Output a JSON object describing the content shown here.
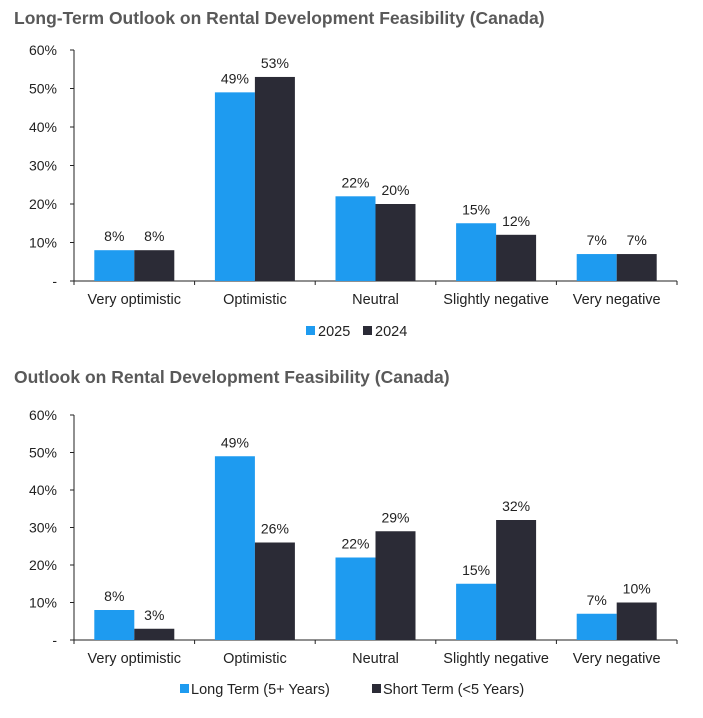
{
  "colors": {
    "primary": "#1e9bf0",
    "secondary": "#2b2b36",
    "axis": "#222222"
  },
  "chart_data": [
    {
      "type": "bar",
      "title": "Long-Term Outlook on Rental Development Feasibility (Canada)",
      "categories": [
        "Very optimistic",
        "Optimistic",
        "Neutral",
        "Slightly negative",
        "Very negative"
      ],
      "series": [
        {
          "name": "2025",
          "values": [
            8,
            49,
            22,
            15,
            7
          ],
          "labels": [
            "8%",
            "49%",
            "22%",
            "15%",
            "7%"
          ]
        },
        {
          "name": "2024",
          "values": [
            8,
            53,
            20,
            12,
            7
          ],
          "labels": [
            "8%",
            "53%",
            "20%",
            "12%",
            "7%"
          ]
        }
      ],
      "ylim": [
        0,
        60
      ],
      "yticks": [
        "-",
        "10%",
        "20%",
        "30%",
        "40%",
        "50%",
        "60%"
      ],
      "grid": false,
      "legend": "bottom-center"
    },
    {
      "type": "bar",
      "title": "Outlook on Rental Development Feasibility (Canada)",
      "categories": [
        "Very optimistic",
        "Optimistic",
        "Neutral",
        "Slightly negative",
        "Very negative"
      ],
      "series": [
        {
          "name": "Long Term (5+ Years)",
          "values": [
            8,
            49,
            22,
            15,
            7
          ],
          "labels": [
            "8%",
            "49%",
            "22%",
            "15%",
            "7%"
          ]
        },
        {
          "name": "Short Term (<5 Years)",
          "values": [
            3,
            26,
            29,
            32,
            10
          ],
          "labels": [
            "3%",
            "26%",
            "29%",
            "32%",
            "10%"
          ]
        }
      ],
      "ylim": [
        0,
        60
      ],
      "yticks": [
        "-",
        "10%",
        "20%",
        "30%",
        "40%",
        "50%",
        "60%"
      ],
      "grid": false,
      "legend": "bottom-center"
    }
  ]
}
